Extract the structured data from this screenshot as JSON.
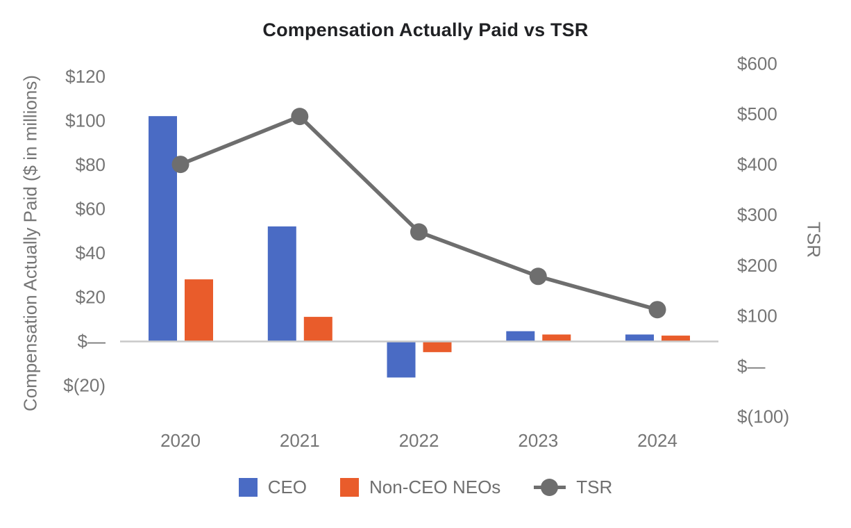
{
  "chart_data": {
    "type": "combo-bar-line",
    "title": "Compensation Actually Paid vs TSR",
    "categories": [
      "2020",
      "2021",
      "2022",
      "2023",
      "2024"
    ],
    "bar_series": [
      {
        "name": "CEO",
        "color": "#4a6bc4",
        "axis": "left",
        "values": [
          102,
          52,
          -16.5,
          4.5,
          3
        ]
      },
      {
        "name": "Non-CEO NEOs",
        "color": "#e95c2b",
        "axis": "left",
        "values": [
          28,
          11,
          -5,
          3,
          2.5
        ]
      }
    ],
    "line_series": [
      {
        "name": "TSR",
        "color": "#6e6e6e",
        "axis": "right",
        "values": [
          400,
          495,
          266,
          178,
          112
        ]
      }
    ],
    "left_axis": {
      "label": "Compensation Actually Paid ($ in millions)",
      "ticks": [
        "$120",
        "$100",
        "$80",
        "$60",
        "$40",
        "$20",
        "$—",
        "$(20)"
      ],
      "tick_values": [
        120,
        100,
        80,
        60,
        40,
        20,
        0,
        -20
      ],
      "range": [
        -20,
        120
      ]
    },
    "right_axis": {
      "label": "TSR",
      "ticks": [
        "$600",
        "$500",
        "$400",
        "$300",
        "$200",
        "$100",
        "$—",
        "$(100)"
      ],
      "tick_values": [
        600,
        500,
        400,
        300,
        200,
        100,
        0,
        -100
      ],
      "range": [
        -100,
        600
      ]
    },
    "legend_position": "bottom",
    "grid": false
  }
}
